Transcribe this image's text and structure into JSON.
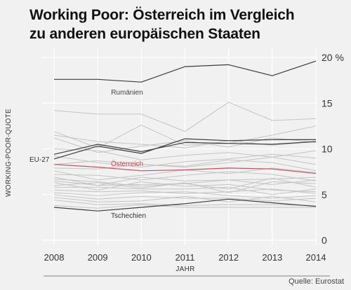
{
  "chart_data": {
    "type": "line",
    "title_line1": "Working Poor: Österreich im Vergleich",
    "title_line2": "zu anderen europäischen Staaten",
    "xlabel": "JAHR",
    "ylabel": "WORKING-POOR-QUOTE",
    "source": "Quelle: Eurostat",
    "x": [
      2008,
      2009,
      2010,
      2011,
      2012,
      2013,
      2014
    ],
    "ylim": [
      0,
      20
    ],
    "yticks": [
      {
        "value": 0,
        "label": "0"
      },
      {
        "value": 5,
        "label": "5"
      },
      {
        "value": 10,
        "label": "10"
      },
      {
        "value": 15,
        "label": "15"
      },
      {
        "value": 20,
        "label": "20 %"
      }
    ],
    "grid": true,
    "colors": {
      "background": "#f1f1f1",
      "grid": "#ffffff",
      "other": "#c4c4c4",
      "highlight": "#3c3c3c",
      "austria": "#c0505a"
    },
    "annotations": {
      "romania": "Rumänien",
      "eu27": "EU-27",
      "austria": "Österreich",
      "czech": "Tschechien"
    },
    "series": [
      {
        "name": "Rumänien",
        "role": "highlight",
        "values": [
          17.6,
          17.6,
          17.3,
          19.0,
          19.2,
          18.0,
          19.6
        ]
      },
      {
        "name": "Österreich",
        "role": "austria",
        "values": [
          8.3,
          8.0,
          7.6,
          7.7,
          7.9,
          7.8,
          7.3
        ]
      },
      {
        "name": "Tschechien",
        "role": "highlight",
        "values": [
          3.6,
          3.2,
          3.6,
          4.0,
          4.5,
          4.1,
          3.7
        ]
      },
      {
        "name": "EU-27",
        "role": "highlight",
        "values": [
          8.9,
          10.3,
          9.5,
          11.1,
          10.9,
          11.0,
          11.0
        ]
      },
      {
        "role": "highlight",
        "values": [
          9.4,
          10.5,
          9.7,
          10.7,
          10.6,
          10.5,
          10.8
        ]
      },
      {
        "role": "other",
        "values": [
          14.2,
          13.8,
          13.8,
          11.9,
          15.1,
          13.1,
          13.3
        ]
      },
      {
        "role": "other",
        "values": [
          11.9,
          10.1,
          12.6,
          10.4,
          10.6,
          11.5,
          12.5
        ]
      },
      {
        "role": "other",
        "values": [
          11.5,
          10.8,
          10.5,
          10.1,
          10.9,
          10.4,
          10.8
        ]
      },
      {
        "role": "other",
        "values": [
          11.2,
          9.6,
          10.3,
          10.9,
          10.2,
          11.2,
          10.7
        ]
      },
      {
        "role": "other",
        "values": [
          10.0,
          9.8,
          8.8,
          9.3,
          9.6,
          9.1,
          9.8
        ]
      },
      {
        "role": "other",
        "values": [
          9.2,
          8.5,
          8.0,
          8.6,
          8.9,
          9.4,
          9.0
        ]
      },
      {
        "role": "other",
        "values": [
          8.3,
          8.7,
          8.3,
          8.0,
          8.5,
          9.1,
          8.3
        ]
      },
      {
        "role": "other",
        "values": [
          7.9,
          7.8,
          8.3,
          8.1,
          8.8,
          8.5,
          7.6
        ]
      },
      {
        "role": "other",
        "values": [
          7.6,
          6.6,
          7.1,
          7.7,
          7.3,
          7.9,
          7.4
        ]
      },
      {
        "role": "other",
        "values": [
          7.2,
          7.1,
          6.6,
          7.1,
          7.5,
          7.2,
          6.5
        ]
      },
      {
        "role": "other",
        "values": [
          6.9,
          6.0,
          6.9,
          6.5,
          6.6,
          6.7,
          6.9
        ]
      },
      {
        "role": "other",
        "values": [
          6.7,
          6.4,
          5.9,
          6.2,
          6.6,
          6.1,
          6.6
        ]
      },
      {
        "role": "other",
        "values": [
          6.5,
          6.0,
          6.1,
          6.2,
          5.6,
          6.8,
          5.8
        ]
      },
      {
        "role": "other",
        "values": [
          6.3,
          5.5,
          6.4,
          5.9,
          6.1,
          5.5,
          5.3
        ]
      },
      {
        "role": "other",
        "values": [
          6.0,
          6.3,
          5.7,
          6.3,
          5.2,
          6.4,
          6.2
        ]
      },
      {
        "role": "other",
        "values": [
          5.8,
          5.8,
          5.6,
          5.6,
          5.8,
          5.0,
          5.6
        ]
      },
      {
        "role": "other",
        "values": [
          5.5,
          5.3,
          5.4,
          5.1,
          5.3,
          5.6,
          5.1
        ]
      },
      {
        "role": "other",
        "values": [
          5.2,
          4.9,
          5.2,
          5.3,
          4.9,
          4.6,
          4.9
        ]
      },
      {
        "role": "other",
        "values": [
          5.0,
          4.5,
          4.8,
          4.6,
          4.6,
          4.3,
          4.6
        ]
      },
      {
        "role": "other",
        "values": [
          4.7,
          4.2,
          4.3,
          4.8,
          4.2,
          4.8,
          4.2
        ]
      },
      {
        "role": "other",
        "values": [
          4.4,
          3.9,
          4.0,
          3.8,
          3.9,
          3.9,
          3.8
        ]
      },
      {
        "role": "other",
        "values": [
          3.8,
          3.5,
          3.9,
          3.6,
          3.6,
          3.6,
          3.6
        ]
      }
    ]
  }
}
